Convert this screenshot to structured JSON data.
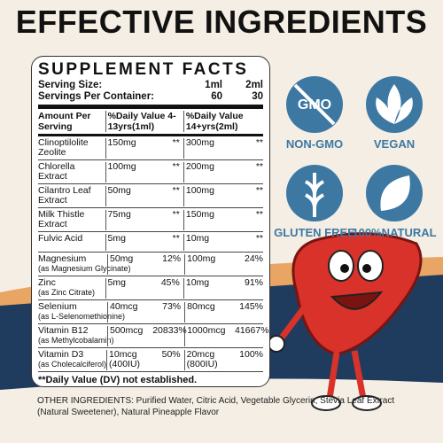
{
  "title": "EFFECTIVE INGREDIENTS",
  "facts": {
    "title": "SUPPLEMENT FACTS",
    "serving": [
      [
        "Serving Size:",
        "1ml",
        "2ml"
      ],
      [
        "Servings Per Container:",
        "60",
        "30"
      ]
    ],
    "header": [
      "Amount Per Serving",
      "%Daily Value 4-13yrs(1ml)",
      "%Daily Value 14+yrs(2ml)"
    ],
    "rows": [
      [
        "Clinoptilolite Zeolite",
        null,
        "150mg",
        "**",
        "300mg",
        "**"
      ],
      [
        "Chlorella Extract",
        null,
        "100mg",
        "**",
        "200mg",
        "**"
      ],
      [
        "Cilantro Leaf Extract",
        null,
        "50mg",
        "**",
        "100mg",
        "**"
      ],
      [
        "Milk Thistle Extract",
        null,
        "75mg",
        "**",
        "150mg",
        "**"
      ],
      [
        "Fulvic Acid",
        null,
        "5mg",
        "**",
        "10mg",
        "**"
      ],
      [
        "Magnesium",
        "(as Magnesium Glycinate)",
        "50mg",
        "12%",
        "100mg",
        "24%"
      ],
      [
        "Zinc",
        "(as Zinc Citrate)",
        "5mg",
        "45%",
        "10mg",
        "91%"
      ],
      [
        "Selenium",
        "(as L-Selenomethionine)",
        "40mcg",
        "73%",
        "80mcg",
        "145%"
      ],
      [
        "Vitamin B12",
        "(as Methylcobalamin)",
        "500mcg",
        "20833%",
        "1000mcg",
        "41667%"
      ],
      [
        "Vitamin D3",
        "(as Cholecalciferol)",
        "10mcg (400IU)",
        "50%",
        "20mcg (800IU)",
        "100%"
      ]
    ],
    "footnote": "**Daily Value (DV) not established."
  },
  "badges": [
    "NON-GMO",
    "VEGAN",
    "GLUTEN FREE",
    "100%NATURAL"
  ],
  "other_ingredients": "OTHER INGREDIENTS: Purified Water, Citric Acid, Vegetable Glycerin, Stevia Leaf Extract (Natural Sweetener), Natural Pineapple Flavor"
}
